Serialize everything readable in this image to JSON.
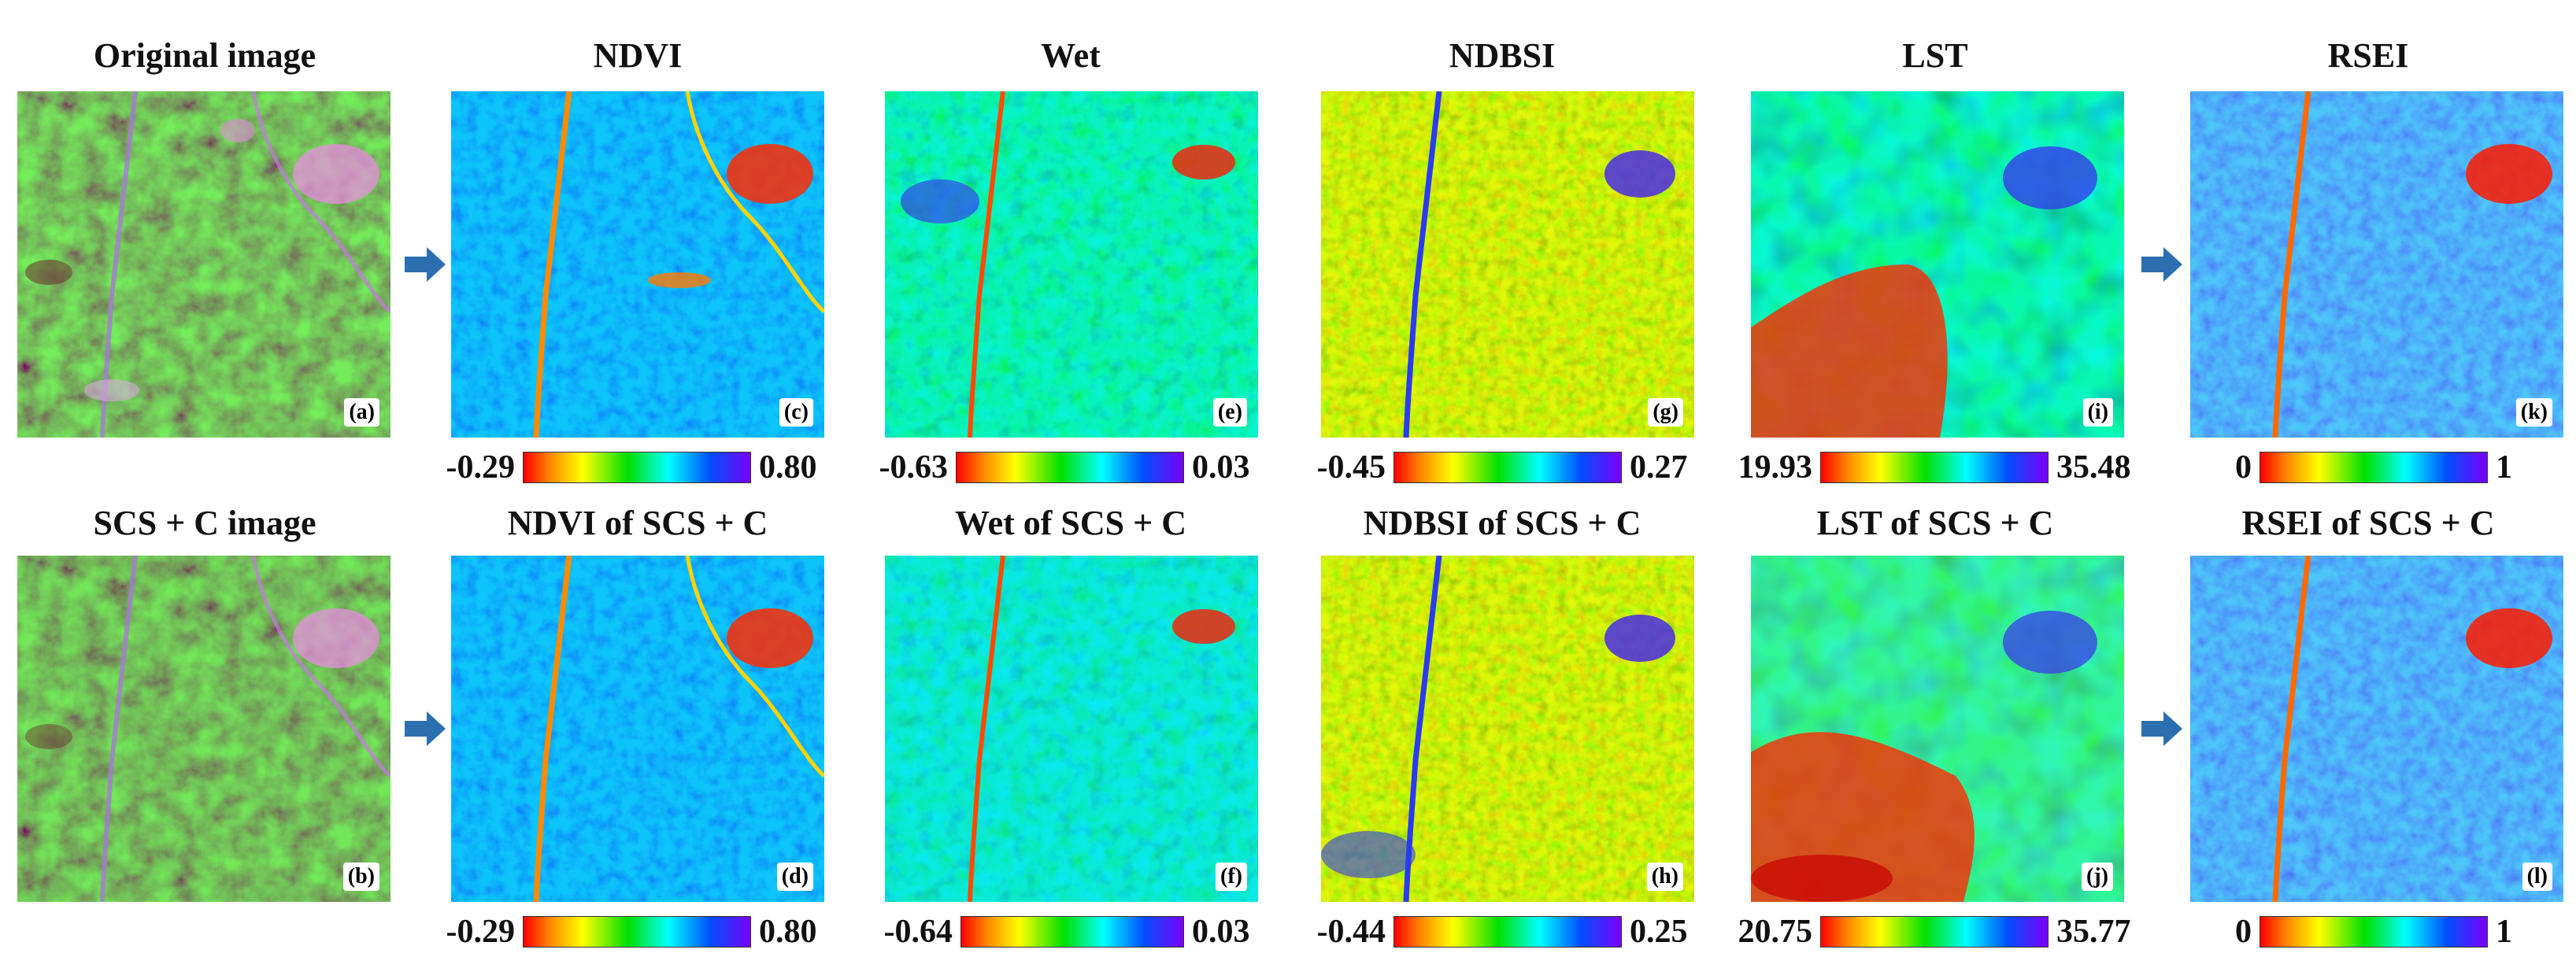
{
  "figure": {
    "columns": [
      "original",
      "ndvi",
      "wet",
      "ndbsi",
      "lst",
      "rsei"
    ],
    "rows": {
      "top": {
        "titles": [
          "Original image",
          "NDVI",
          "Wet",
          "NDBSI",
          "LST",
          "RSEI"
        ],
        "badges": [
          "(a)",
          "(c)",
          "(e)",
          "(g)",
          "(i)",
          "(k)"
        ],
        "scales": [
          {
            "min": "-0.29",
            "max": "0.80"
          },
          {
            "min": "-0.63",
            "max": "0.03"
          },
          {
            "min": "-0.45",
            "max": "0.27"
          },
          {
            "min": "19.93",
            "max": "35.48"
          },
          {
            "min": "0",
            "max": "1"
          }
        ]
      },
      "bottom": {
        "titles": [
          "SCS + C image",
          "NDVI of SCS + C",
          "Wet of SCS + C",
          "NDBSI of SCS + C",
          "LST of SCS + C",
          "RSEI of SCS + C"
        ],
        "badges": [
          "(b)",
          "(d)",
          "(f)",
          "(h)",
          "(j)",
          "(l)"
        ],
        "scales": [
          {
            "min": "-0.29",
            "max": "0.80"
          },
          {
            "min": "-0.64",
            "max": "0.03"
          },
          {
            "min": "-0.44",
            "max": "0.25"
          },
          {
            "min": "20.75",
            "max": "35.77"
          },
          {
            "min": "0",
            "max": "1"
          }
        ]
      }
    },
    "arrow_color": "#2c6fb0",
    "colormap": [
      "#ff0000",
      "#ff8a00",
      "#ffff00",
      "#00e000",
      "#00ffff",
      "#0050ff",
      "#7a00ff"
    ]
  }
}
